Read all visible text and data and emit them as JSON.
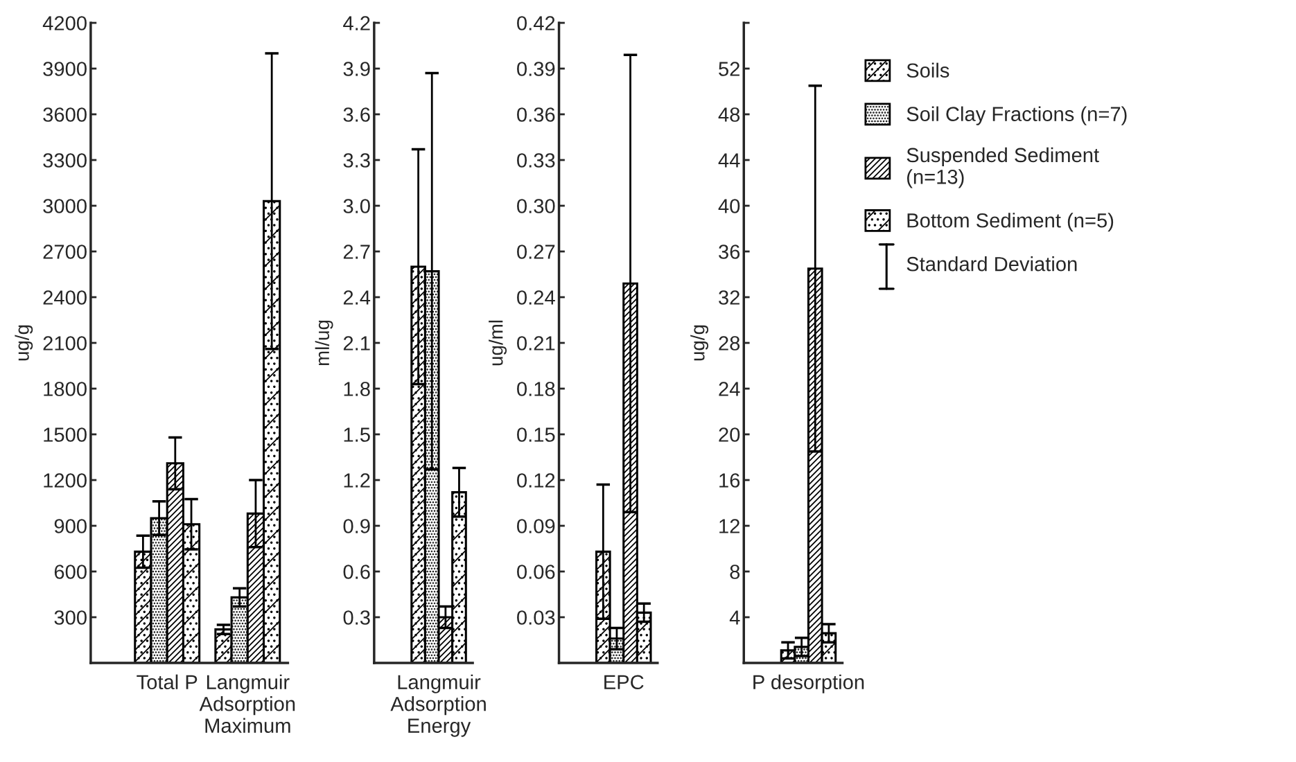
{
  "chart_data": [
    {
      "type": "bar",
      "ylabel": "ug/g",
      "categories": [
        "Total P",
        "Langmuir\nAdsorption\nMaximum"
      ],
      "ylim": [
        0,
        4200
      ],
      "yticks": [
        300,
        600,
        900,
        1200,
        1500,
        1800,
        2100,
        2400,
        2700,
        3000,
        3300,
        3600,
        3900,
        4200
      ],
      "series": [
        {
          "color": "#000000",
          "values": [
            730,
            220
          ],
          "errors": [
            105,
            30
          ]
        },
        {
          "color": "#000000",
          "values": [
            950,
            430
          ],
          "errors": [
            110,
            60
          ]
        },
        {
          "color": "#000000",
          "values": [
            1310,
            980
          ],
          "errors": [
            170,
            220
          ]
        },
        {
          "color": "#000000",
          "values": [
            910,
            3030
          ],
          "errors": [
            165,
            970
          ]
        }
      ]
    },
    {
      "type": "bar",
      "ylabel": "ml/ug",
      "categories": [
        "Langmuir\nAdsorption\nEnergy"
      ],
      "ylim": [
        0,
        4.2
      ],
      "yticks": [
        0.3,
        0.6,
        0.9,
        1.2,
        1.5,
        1.8,
        2.1,
        2.4,
        2.7,
        {
          "value": 3,
          "label": "3.0"
        },
        3.3,
        3.6,
        3.9,
        4.2
      ],
      "series": [
        {
          "color": "#000000",
          "values": [
            2.6
          ],
          "errors": [
            0.77
          ]
        },
        {
          "color": "#000000",
          "values": [
            2.57
          ],
          "errors": [
            1.3
          ]
        },
        {
          "color": "#000000",
          "values": [
            0.3
          ],
          "errors": [
            0.07
          ]
        },
        {
          "color": "#000000",
          "values": [
            1.12
          ],
          "errors": [
            0.16
          ]
        }
      ]
    },
    {
      "type": "bar",
      "ylabel": "ug/ml",
      "categories": [
        "EPC"
      ],
      "ylim": [
        0,
        0.42
      ],
      "yticks": [
        0.03,
        0.06,
        0.09,
        0.12,
        0.15,
        0.18,
        0.21,
        0.24,
        0.27,
        {
          "value": 0.3,
          "label": "0.30"
        },
        0.33,
        0.36,
        0.39,
        0.42
      ],
      "series": [
        {
          "color": "#000000",
          "values": [
            0.073
          ],
          "errors": [
            0.044
          ]
        },
        {
          "color": "#000000",
          "values": [
            0.016
          ],
          "errors": [
            0.007
          ]
        },
        {
          "color": "#000000",
          "values": [
            0.249
          ],
          "errors": [
            0.15
          ]
        },
        {
          "color": "#000000",
          "values": [
            0.033
          ],
          "errors": [
            0.006
          ]
        }
      ]
    },
    {
      "type": "bar",
      "ylabel": "ug/g",
      "categories": [
        "P desorption"
      ],
      "ylim": [
        0,
        56
      ],
      "yticks": [
        4,
        8,
        12,
        16,
        20,
        24,
        28,
        32,
        36,
        40,
        44,
        48,
        52,
        {
          "value": 56,
          "label": null
        }
      ],
      "legend": "right",
      "annotations": [
        "Standard Deviation"
      ],
      "series": [
        {
          "name": "Soils",
          "color": "#000000",
          "values": [
            1.1
          ],
          "errors": [
            0.7
          ]
        },
        {
          "name": "Soil Clay Fractions (n=7)",
          "color": "#000000",
          "values": [
            1.4
          ],
          "errors": [
            0.8
          ]
        },
        {
          "name": "Suspended Sediment\n(n=13)",
          "color": "#000000",
          "values": [
            34.5
          ],
          "errors": [
            16
          ]
        },
        {
          "name": "Bottom Sediment (n=5)",
          "color": "#000000",
          "values": [
            2.6
          ],
          "errors": [
            0.8
          ]
        }
      ]
    }
  ]
}
